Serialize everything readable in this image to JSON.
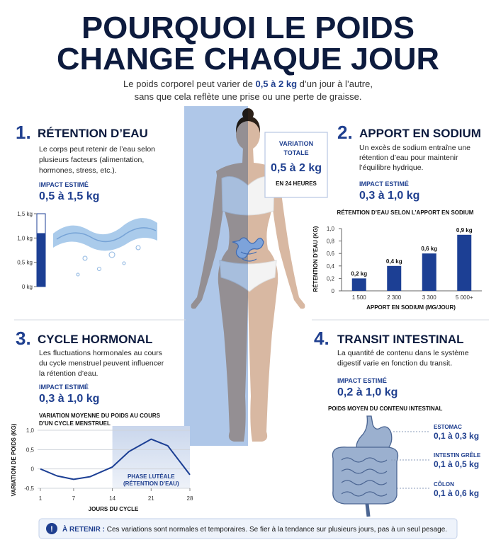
{
  "header": {
    "title_lines": [
      "POURQUOI LE POIDS",
      "CHANGE CHAQUE JOUR"
    ],
    "subtitle": {
      "before": "Le poids corporel peut varier de ",
      "highlight": "0,5 à 2 kg",
      "after": " d’un jour à l’autre,",
      "line2": "sans que cela reflète une prise ou une perte de graisse."
    }
  },
  "variation_box": {
    "label_lines": [
      "VARIATION",
      "TOTALE"
    ],
    "value": "0,5 à 2 kg",
    "note": "EN 24 HEURES"
  },
  "sections": [
    {
      "number": "1.",
      "title": "RÉTENTION D’EAU",
      "text_lines": [
        "Le corps peut retenir de l’eau selon",
        "plusieurs facteurs (alimentation,",
        "hormones, stress, etc.)."
      ],
      "impact_label": "IMPACT ESTIMÉ",
      "impact_value": "0,5 à 1,5 kg"
    },
    {
      "number": "2.",
      "title": "APPORT EN SODIUM",
      "text_lines": [
        "Un excès de sodium entraîne une",
        "rétention d’eau pour maintenir",
        "l’équilibre hydrique."
      ],
      "impact_label": "IMPACT ESTIMÉ",
      "impact_value": "0,3 à 1,0 kg"
    },
    {
      "number": "3.",
      "title": "CYCLE HORMONAL",
      "text_lines": [
        "Les fluctuations hormonales au cours",
        "du cycle menstruel peuvent influencer",
        "la rétention d’eau."
      ],
      "impact_label": "IMPACT ESTIMÉ",
      "impact_value": "0,3 à 1,0 kg"
    },
    {
      "number": "4.",
      "title": "TRANSIT INTESTINAL",
      "text_lines": [
        "La quantité de contenu dans le système",
        "digestif varie en fonction du transit."
      ],
      "impact_label": "IMPACT ESTIMÉ",
      "impact_value": "0,2 à 1,0 kg"
    }
  ],
  "water_gauge": {
    "type": "bar",
    "ylim": [
      0,
      1.5
    ],
    "yticks": [
      {
        "value": 0,
        "label": "0 kg"
      },
      {
        "value": 0.5,
        "label": "0,5 kg"
      },
      {
        "value": 1,
        "label": "1,0 kg"
      },
      {
        "value": 1.5,
        "label": "1,5 kg"
      }
    ],
    "value": 1.1,
    "color": "#1c3f94"
  },
  "sodium_chart": {
    "type": "bar",
    "title": "RÉTENTION D’EAU SELON L’APPORT EN SODIUM",
    "ylabel": "RÉTENTION D’EAU (KG)",
    "xlabel": "APPORT EN SODIUM (MG/JOUR)",
    "categories": [
      "1 500",
      "2 300",
      "3 300",
      "5 000+"
    ],
    "values": [
      0.2,
      0.4,
      0.6,
      0.9
    ],
    "value_labels": [
      "0,2 kg",
      "0,4 kg",
      "0,6 kg",
      "0,9 kg"
    ],
    "color": "#1c3f94",
    "ylim": [
      0,
      1
    ],
    "yticks": [
      0,
      {
        "value": 0.2,
        "label": "0,2"
      },
      {
        "value": 0.4,
        "label": "0,4"
      },
      {
        "value": 0.6,
        "label": "0,6"
      },
      {
        "value": 0.8,
        "label": "0,8"
      },
      {
        "value": 1,
        "label": "1,0"
      }
    ]
  },
  "cycle_chart": {
    "type": "line",
    "title_lines": [
      "VARIATION MOYENNE DU POIDS AU COURS",
      "D’UN CYCLE MENSTRUEL"
    ],
    "ylabel": "VARIATION DE POIDS (KG)",
    "xlabel": "JOURS DU CYCLE",
    "x": [
      1,
      4,
      7,
      10,
      14,
      17,
      21,
      24,
      28
    ],
    "values": [
      0,
      -0.18,
      -0.27,
      -0.2,
      0.05,
      0.45,
      0.77,
      0.6,
      -0.15
    ],
    "color": "#1c3f94",
    "xlim": [
      1,
      28
    ],
    "xticks": [
      1,
      7,
      14,
      21,
      28
    ],
    "ylim": [
      -0.5,
      1
    ],
    "yticks": [
      {
        "value": -0.5,
        "label": "-0,5"
      },
      0,
      {
        "value": 0.5,
        "label": "0,5"
      },
      {
        "value": 1,
        "label": "1,0"
      }
    ],
    "phase": {
      "label_lines": [
        "PHASE LUTÉALE",
        "(RÉTENTION D’EAU)"
      ],
      "x": [
        14,
        28
      ]
    }
  },
  "digestive": {
    "label": "POIDS MOYEN DU CONTENU INTESTINAL",
    "organs": [
      {
        "name": "ESTOMAC",
        "value": "0,1 à 0,3 kg"
      },
      {
        "name": "INTESTIN GRÊLE",
        "value": "0,1 à 0,5 kg"
      },
      {
        "name": "CÔLON",
        "value": "0,1 à 0,6 kg"
      }
    ]
  },
  "footer": {
    "icon": "!",
    "label": "À RETENIR :",
    "text": " Ces variations sont normales et temporaires. Se fier à la tendance sur plusieurs jours, pas à un seul pesage."
  }
}
